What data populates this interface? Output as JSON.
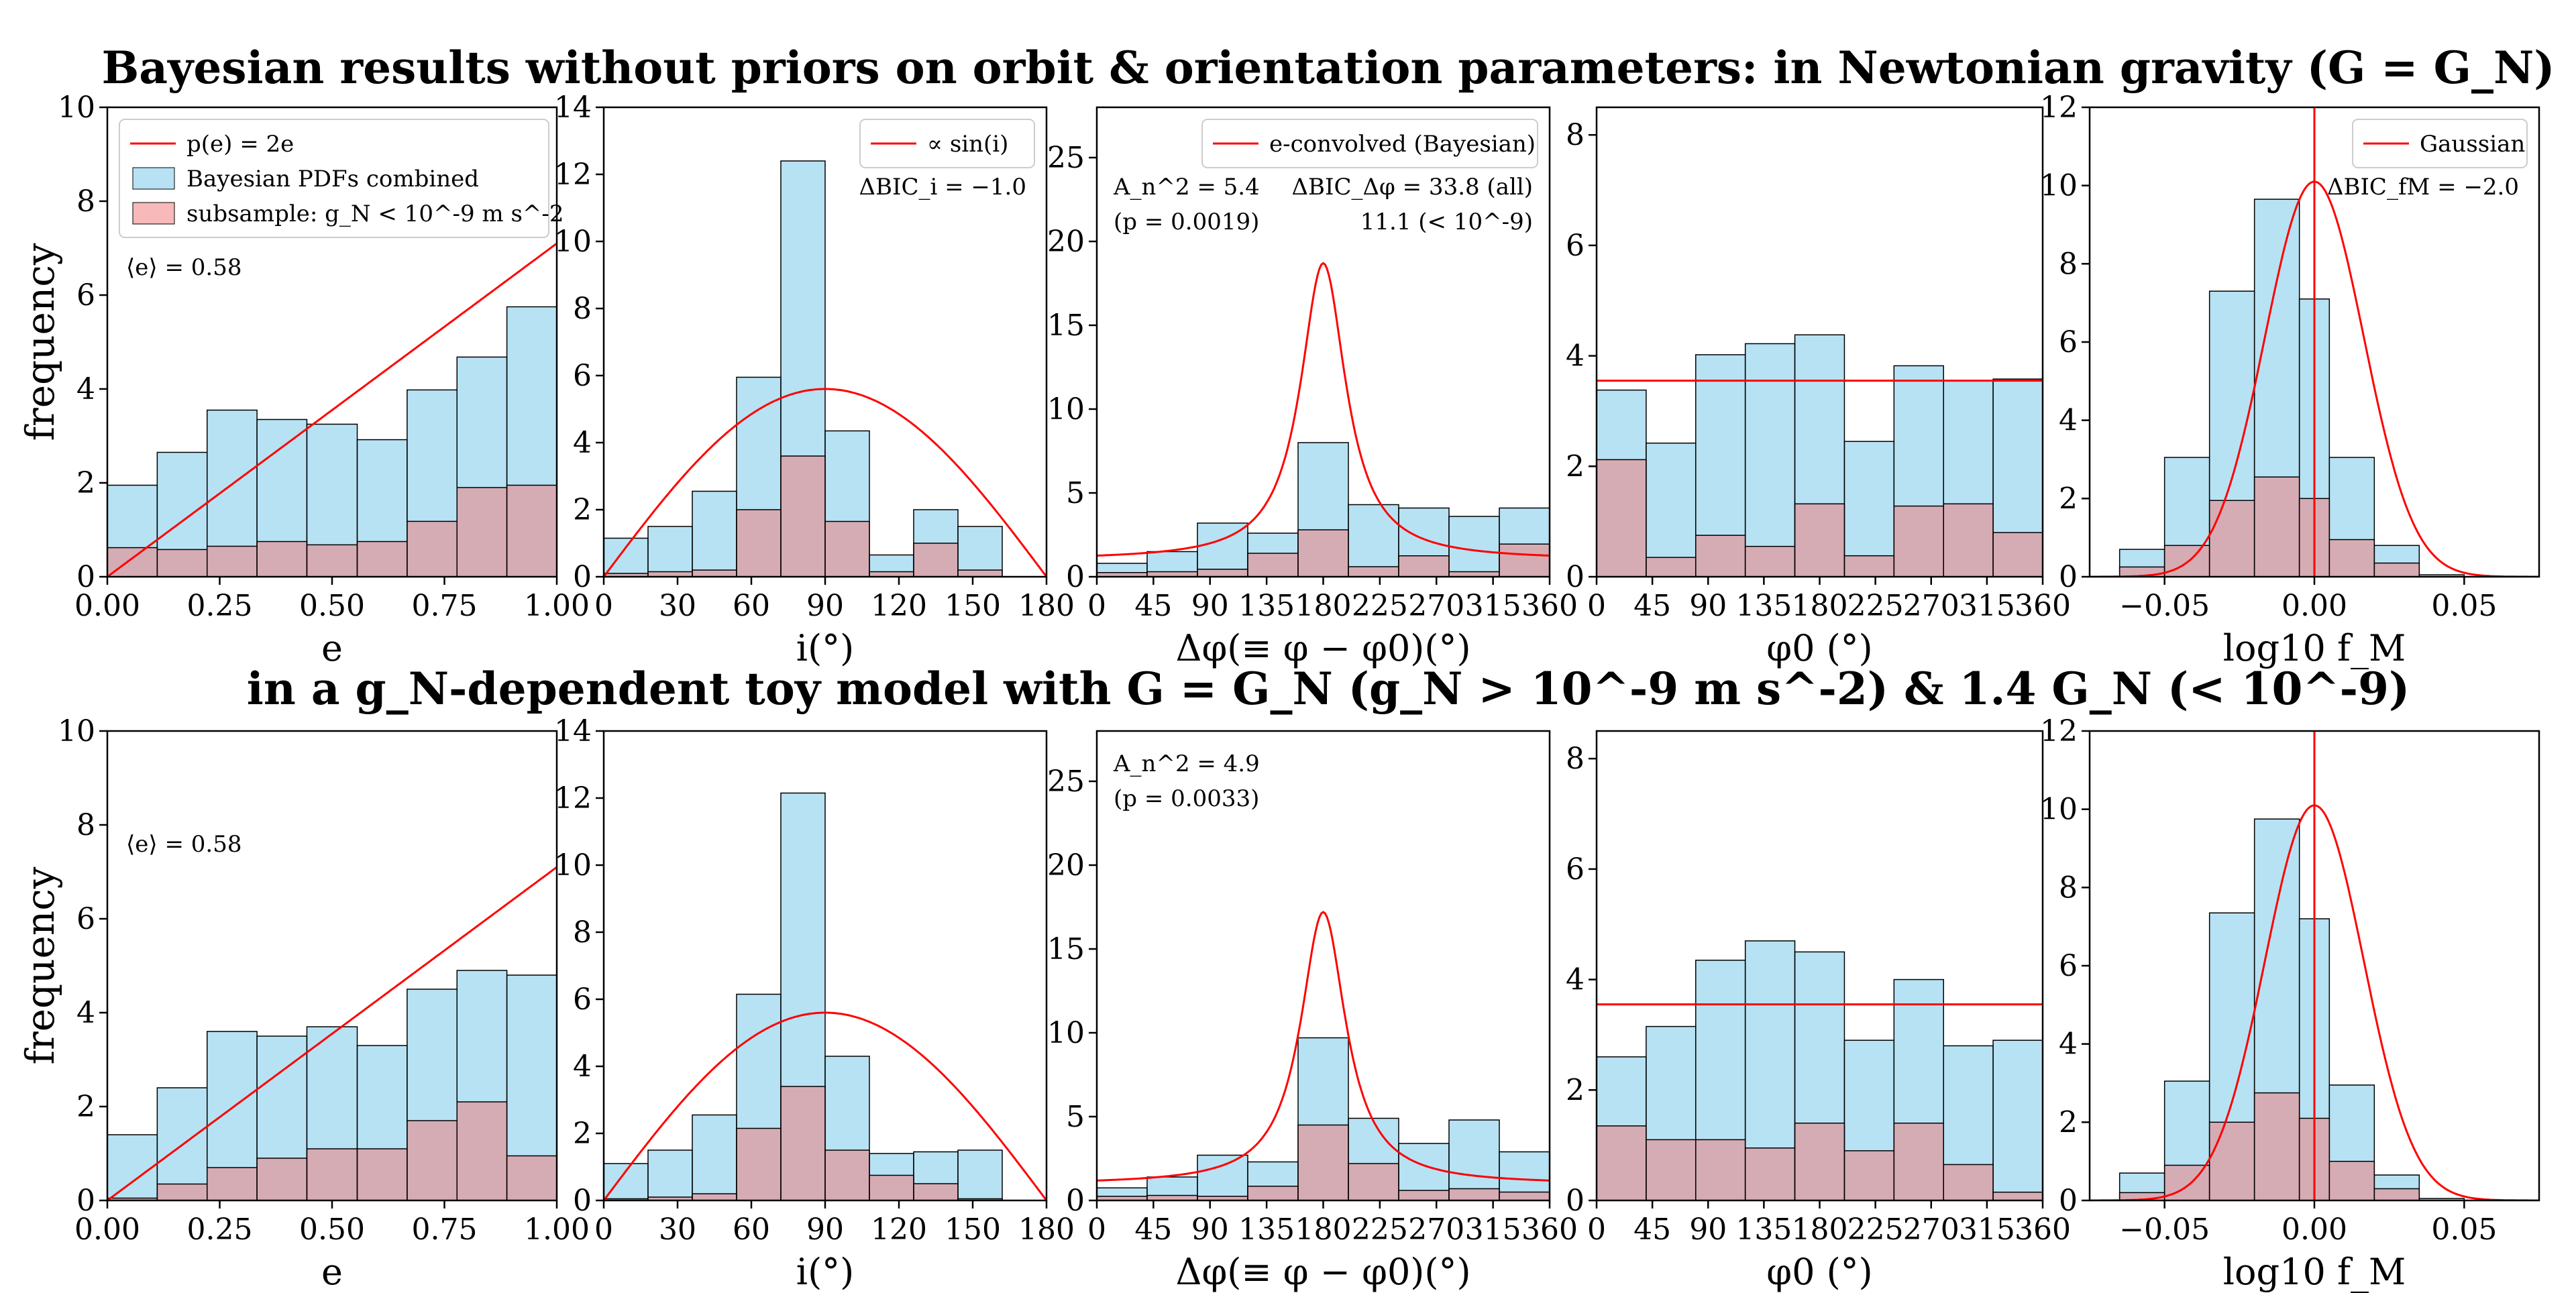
{
  "titles": {
    "top": "Bayesian results without priors on orbit & orientation parameters: in Newtonian gravity (G = G_N)",
    "bottom": "in a g_N-dependent toy model with G = G_N (g_N > 10^-9 m s^-2) & 1.4 G_N (< 10^-9)"
  },
  "colors": {
    "hist_all": "#87ceeb",
    "hist_sub": "#f08080",
    "model_line": "#ff0000",
    "annot_red": "#ff0000"
  },
  "legends": {
    "e": [
      "p(e) = 2e",
      "Bayesian PDFs combined",
      "subsample: g_N < 10^-9 m s^-2"
    ],
    "i": [
      "∝ sin(i)"
    ],
    "dphi": [
      "e-convolved (Bayesian)"
    ],
    "fm": [
      "Gaussian"
    ]
  },
  "chart_data": [
    {
      "type": "bar",
      "panel": "e",
      "row": "top",
      "title": "",
      "xlabel": "e",
      "ylabel": "frequency",
      "xlim": [
        0,
        1
      ],
      "ylim": [
        0,
        10
      ],
      "xticks": [
        0,
        0.25,
        0.5,
        0.75,
        1.0
      ],
      "yticks": [
        0,
        2,
        4,
        6,
        8,
        10
      ],
      "bin_edges": [
        0,
        0.111,
        0.222,
        0.333,
        0.444,
        0.556,
        0.667,
        0.778,
        0.889,
        1.0
      ],
      "series": [
        {
          "name": "Bayesian PDFs combined",
          "values": [
            1.95,
            2.65,
            3.55,
            3.35,
            3.25,
            2.92,
            3.98,
            4.68,
            5.75
          ]
        },
        {
          "name": "subsample: g_N < 10^-9 m s^-2",
          "values": [
            0.62,
            0.58,
            0.65,
            0.75,
            0.68,
            0.75,
            1.18,
            1.9,
            1.95
          ]
        }
      ],
      "curve": {
        "name": "p(e) = 2e",
        "kind": "linear",
        "x": [
          0,
          1
        ],
        "y": [
          0,
          7.1
        ]
      },
      "annotations": [
        "⟨e⟩ = 0.58"
      ]
    },
    {
      "type": "bar",
      "panel": "i",
      "row": "top",
      "title": "",
      "xlabel": "i(°)",
      "ylabel": "",
      "xlim": [
        0,
        180
      ],
      "ylim": [
        0,
        14
      ],
      "xticks": [
        0,
        30,
        60,
        90,
        120,
        150,
        180
      ],
      "yticks": [
        0,
        2,
        4,
        6,
        8,
        10,
        12,
        14
      ],
      "bin_edges": [
        0,
        18,
        36,
        54,
        72,
        90,
        108,
        126,
        144,
        162,
        180
      ],
      "series": [
        {
          "name": "Bayesian PDFs combined",
          "values": [
            1.15,
            1.5,
            2.55,
            5.95,
            12.4,
            4.35,
            0.65,
            2.0,
            1.5
          ]
        },
        {
          "name": "subsample: g_N < 10^-9 m s^-2",
          "values": [
            0.1,
            0.15,
            0.2,
            2.0,
            3.6,
            1.65,
            0.15,
            1.0,
            0.2
          ]
        }
      ],
      "curve": {
        "name": "∝ sin(i)",
        "kind": "sin",
        "peak": 5.6
      },
      "annotations": [
        "ΔBIC_i = −1.0"
      ]
    },
    {
      "type": "bar",
      "panel": "dphi",
      "row": "top",
      "title": "",
      "xlabel": "Δφ(≡ φ − φ0)(°)",
      "ylabel": "",
      "xlim": [
        0,
        360
      ],
      "ylim": [
        0,
        28
      ],
      "xticks": [
        0,
        45,
        90,
        135,
        180,
        225,
        270,
        315,
        360
      ],
      "yticks": [
        0,
        5,
        10,
        15,
        20,
        25
      ],
      "bin_edges": [
        0,
        40,
        80,
        120,
        160,
        200,
        240,
        280,
        320,
        360
      ],
      "series": [
        {
          "name": "Bayesian PDFs combined",
          "values": [
            0.8,
            1.5,
            3.2,
            2.6,
            8.0,
            4.3,
            4.1,
            3.6,
            4.1
          ]
        },
        {
          "name": "subsample: g_N < 10^-9 m s^-2",
          "values": [
            0.25,
            0.3,
            0.45,
            1.4,
            2.8,
            0.6,
            1.25,
            0.3,
            1.95
          ]
        }
      ],
      "curve": {
        "name": "e-convolved (Bayesian)",
        "kind": "lorentz",
        "peak": 18.7,
        "base": 1.0,
        "center": 180
      },
      "annotations": [
        "A_n^2 = 5.4",
        "(p = 0.0019)",
        "ΔBIC_Δφ = 33.8 (all)",
        "11.1 (< 10^-9)"
      ]
    },
    {
      "type": "bar",
      "panel": "phi0",
      "row": "top",
      "title": "",
      "xlabel": "φ0 (°)",
      "ylabel": "",
      "xlim": [
        0,
        360
      ],
      "ylim": [
        0,
        8.5
      ],
      "xticks": [
        0,
        45,
        90,
        135,
        180,
        225,
        270,
        315,
        360
      ],
      "yticks": [
        0,
        2,
        4,
        6,
        8
      ],
      "bin_edges": [
        0,
        40,
        80,
        120,
        160,
        200,
        240,
        280,
        320,
        360
      ],
      "series": [
        {
          "name": "Bayesian PDFs combined",
          "values": [
            3.38,
            2.42,
            4.02,
            4.22,
            4.38,
            2.45,
            3.82,
            3.55,
            3.58
          ]
        },
        {
          "name": "subsample: g_N < 10^-9 m s^-2",
          "values": [
            2.12,
            0.35,
            0.75,
            0.55,
            1.32,
            0.38,
            1.28,
            1.32,
            0.8
          ]
        }
      ],
      "curve": {
        "name": "uniform",
        "kind": "flat",
        "level": 3.55
      },
      "annotations": []
    },
    {
      "type": "bar",
      "panel": "fm",
      "row": "top",
      "title": "",
      "xlabel": "log10 f_M",
      "ylabel": "",
      "xlim": [
        -0.075,
        0.075
      ],
      "ylim": [
        0,
        12
      ],
      "xticks": [
        -0.05,
        0.0,
        0.05
      ],
      "yticks": [
        0,
        2,
        4,
        6,
        8,
        10,
        12
      ],
      "bin_edges": [
        -0.065,
        -0.05,
        -0.035,
        -0.02,
        -0.005,
        0.005,
        0.02,
        0.035,
        0.05,
        0.065
      ],
      "series": [
        {
          "name": "Bayesian PDFs combined",
          "values": [
            0.7,
            3.05,
            7.3,
            9.65,
            7.1,
            3.05,
            0.8,
            0.05
          ]
        },
        {
          "name": "subsample: g_N < 10^-9 m s^-2",
          "values": [
            0.25,
            0.8,
            1.95,
            2.55,
            2.0,
            0.95,
            0.35,
            0.0
          ]
        }
      ],
      "curve": {
        "name": "Gaussian",
        "kind": "gauss",
        "peak": 10.1,
        "mu": 0.0,
        "sigma": 0.0165
      },
      "vline": 0.0,
      "annotations": [
        "ΔBIC_fM = −2.0"
      ]
    },
    {
      "type": "bar",
      "panel": "e",
      "row": "bottom",
      "title": "",
      "xlabel": "e",
      "ylabel": "frequency",
      "xlim": [
        0,
        1
      ],
      "ylim": [
        0,
        10
      ],
      "xticks": [
        0,
        0.25,
        0.5,
        0.75,
        1.0
      ],
      "yticks": [
        0,
        2,
        4,
        6,
        8,
        10
      ],
      "bin_edges": [
        0,
        0.111,
        0.222,
        0.333,
        0.444,
        0.556,
        0.667,
        0.778,
        0.889,
        1.0
      ],
      "series": [
        {
          "name": "Bayesian PDFs combined",
          "values": [
            1.4,
            2.4,
            3.6,
            3.5,
            3.7,
            3.3,
            4.5,
            4.9,
            4.8
          ]
        },
        {
          "name": "subsample: g_N < 10^-9 m s^-2",
          "values": [
            0.05,
            0.35,
            0.7,
            0.9,
            1.1,
            1.1,
            1.7,
            2.1,
            0.95
          ]
        }
      ],
      "curve": {
        "name": "p(e) = 2e",
        "kind": "linear",
        "x": [
          0,
          1
        ],
        "y": [
          0,
          7.1
        ]
      },
      "annotations": [
        "⟨e⟩ = 0.58"
      ]
    },
    {
      "type": "bar",
      "panel": "i",
      "row": "bottom",
      "title": "",
      "xlabel": "i(°)",
      "ylabel": "",
      "xlim": [
        0,
        180
      ],
      "ylim": [
        0,
        14
      ],
      "xticks": [
        0,
        30,
        60,
        90,
        120,
        150,
        180
      ],
      "yticks": [
        0,
        2,
        4,
        6,
        8,
        10,
        12,
        14
      ],
      "bin_edges": [
        0,
        18,
        36,
        54,
        72,
        90,
        108,
        126,
        144,
        162,
        180
      ],
      "series": [
        {
          "name": "Bayesian PDFs combined",
          "values": [
            1.1,
            1.5,
            2.55,
            6.15,
            12.15,
            4.3,
            1.4,
            1.45,
            1.5
          ]
        },
        {
          "name": "subsample: g_N < 10^-9 m s^-2",
          "values": [
            0.05,
            0.1,
            0.2,
            2.15,
            3.4,
            1.5,
            0.75,
            0.5,
            0.05
          ]
        }
      ],
      "curve": {
        "name": "∝ sin(i)",
        "kind": "sin",
        "peak": 5.6
      },
      "annotations": []
    },
    {
      "type": "bar",
      "panel": "dphi",
      "row": "bottom",
      "title": "",
      "xlabel": "Δφ(≡ φ − φ0)(°)",
      "ylabel": "",
      "xlim": [
        0,
        360
      ],
      "ylim": [
        0,
        28
      ],
      "xticks": [
        0,
        45,
        90,
        135,
        180,
        225,
        270,
        315,
        360
      ],
      "yticks": [
        0,
        5,
        10,
        15,
        20,
        25
      ],
      "bin_edges": [
        0,
        40,
        80,
        120,
        160,
        200,
        240,
        280,
        320,
        360
      ],
      "series": [
        {
          "name": "Bayesian PDFs combined",
          "values": [
            0.75,
            1.4,
            2.7,
            2.3,
            9.7,
            4.9,
            3.4,
            4.8,
            2.9
          ]
        },
        {
          "name": "subsample: g_N < 10^-9 m s^-2",
          "values": [
            0.25,
            0.3,
            0.25,
            0.85,
            4.5,
            2.2,
            0.6,
            0.7,
            0.5
          ]
        }
      ],
      "curve": {
        "name": "e-convolved (Bayesian)",
        "kind": "lorentz",
        "peak": 17.2,
        "base": 0.95,
        "center": 180
      },
      "annotations": [
        "A_n^2 = 4.9",
        "(p = 0.0033)"
      ]
    },
    {
      "type": "bar",
      "panel": "phi0",
      "row": "bottom",
      "title": "",
      "xlabel": "φ0 (°)",
      "ylabel": "",
      "xlim": [
        0,
        360
      ],
      "ylim": [
        0,
        8.5
      ],
      "xticks": [
        0,
        45,
        90,
        135,
        180,
        225,
        270,
        315,
        360
      ],
      "yticks": [
        0,
        2,
        4,
        6,
        8
      ],
      "bin_edges": [
        0,
        40,
        80,
        120,
        160,
        200,
        240,
        280,
        320,
        360
      ],
      "series": [
        {
          "name": "Bayesian PDFs combined",
          "values": [
            2.6,
            3.15,
            4.35,
            4.7,
            4.5,
            2.9,
            4.0,
            2.8,
            2.9
          ]
        },
        {
          "name": "subsample: g_N < 10^-9 m s^-2",
          "values": [
            1.35,
            1.1,
            1.1,
            0.95,
            1.4,
            0.9,
            1.4,
            0.65,
            0.15
          ]
        }
      ],
      "curve": {
        "name": "uniform",
        "kind": "flat",
        "level": 3.55
      },
      "annotations": []
    },
    {
      "type": "bar",
      "panel": "fm",
      "row": "bottom",
      "title": "",
      "xlabel": "log10 f_M",
      "ylabel": "",
      "xlim": [
        -0.075,
        0.075
      ],
      "ylim": [
        0,
        12
      ],
      "xticks": [
        -0.05,
        0.0,
        0.05
      ],
      "yticks": [
        0,
        2,
        4,
        6,
        8,
        10,
        12
      ],
      "bin_edges": [
        -0.065,
        -0.05,
        -0.035,
        -0.02,
        -0.005,
        0.005,
        0.02,
        0.035,
        0.05,
        0.065
      ],
      "series": [
        {
          "name": "Bayesian PDFs combined",
          "values": [
            0.7,
            3.05,
            7.35,
            9.75,
            7.2,
            2.95,
            0.65,
            0.05
          ]
        },
        {
          "name": "subsample: g_N < 10^-9 m s^-2",
          "values": [
            0.2,
            0.9,
            2.0,
            2.75,
            2.1,
            1.0,
            0.3,
            0.0
          ]
        }
      ],
      "curve": {
        "name": "Gaussian",
        "kind": "gauss",
        "peak": 10.1,
        "mu": 0.0,
        "sigma": 0.0165
      },
      "vline": 0.0,
      "annotations": []
    }
  ]
}
